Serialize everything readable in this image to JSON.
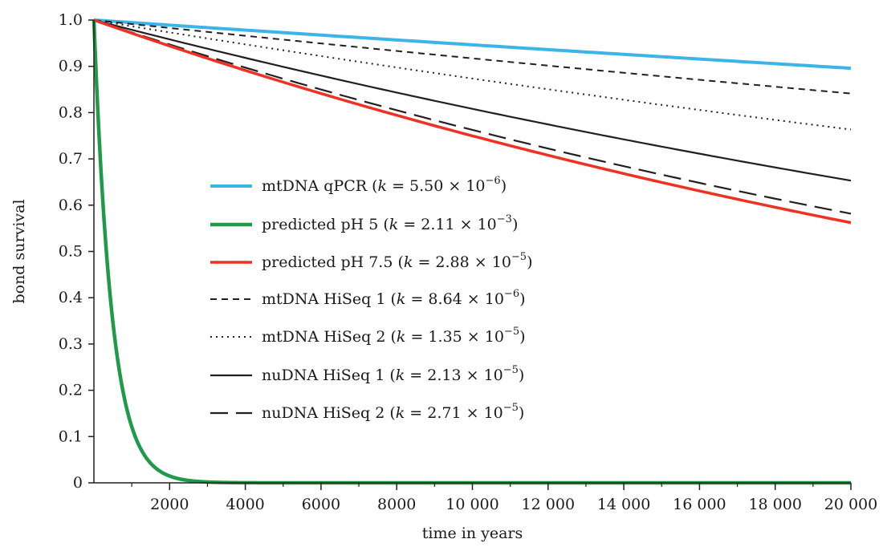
{
  "chart_data": {
    "type": "line",
    "xlabel": "time in years",
    "ylabel": "bond survival",
    "xlim": [
      0,
      20000
    ],
    "ylim": [
      0,
      1.0
    ],
    "x_ticks": [
      2000,
      4000,
      6000,
      8000,
      10000,
      12000,
      14000,
      16000,
      18000,
      20000
    ],
    "x_tick_labels": [
      "2000",
      "4000",
      "6000",
      "8000",
      "10 000",
      "12 000",
      "14 000",
      "16 000",
      "18 000",
      "20 000"
    ],
    "y_ticks": [
      0,
      0.1,
      0.2,
      0.3,
      0.4,
      0.5,
      0.6,
      0.7,
      0.8,
      0.9,
      1.0
    ],
    "y_tick_labels": [
      "0",
      "0.1",
      "0.2",
      "0.3",
      "0.4",
      "0.5",
      "0.6",
      "0.7",
      "0.8",
      "0.9",
      "1.0"
    ],
    "grid": false,
    "legend_position": "center-left",
    "model": "exponential decay: survival = exp(-k * t)",
    "series": [
      {
        "name": "mtDNA qPCR",
        "k_mantissa": "5.50",
        "k_exponent": "−6",
        "k": 5.5e-06,
        "color": "#3cb4e6",
        "style": "solid",
        "width": 4,
        "values_at_ticks": [
          0.989,
          0.978,
          0.968,
          0.957,
          0.947,
          0.936,
          0.926,
          0.916,
          0.906,
          0.896
        ]
      },
      {
        "name": "predicted pH 5",
        "k_mantissa": "2.11",
        "k_exponent": "−3",
        "k": 0.00211,
        "color": "#1f9a48",
        "style": "solid",
        "width": 4.5,
        "values_at_ticks": [
          0.015,
          0.0002,
          0,
          0,
          0,
          0,
          0,
          0,
          0,
          0
        ]
      },
      {
        "name": "predicted pH 7.5",
        "k_mantissa": "2.88",
        "k_exponent": "−5",
        "k": 2.88e-05,
        "color": "#ee3124",
        "style": "solid",
        "width": 3.5,
        "values_at_ticks": [
          0.944,
          0.891,
          0.841,
          0.794,
          0.75,
          0.708,
          0.668,
          0.631,
          0.595,
          0.562
        ]
      },
      {
        "name": "mtDNA HiSeq 1",
        "k_mantissa": "8.64",
        "k_exponent": "−6",
        "k": 8.64e-06,
        "color": "#231f20",
        "style": "dashed",
        "width": 2,
        "values_at_ticks": [
          0.983,
          0.966,
          0.95,
          0.933,
          0.917,
          0.902,
          0.886,
          0.871,
          0.856,
          0.841
        ]
      },
      {
        "name": "mtDNA HiSeq 2",
        "k_mantissa": "1.35",
        "k_exponent": "−5",
        "k": 1.35e-05,
        "color": "#231f20",
        "style": "dotted",
        "width": 2,
        "values_at_ticks": [
          0.973,
          0.947,
          0.922,
          0.897,
          0.874,
          0.85,
          0.828,
          0.806,
          0.784,
          0.763
        ]
      },
      {
        "name": "nuDNA HiSeq 1",
        "k_mantissa": "2.13",
        "k_exponent": "−5",
        "k": 2.13e-05,
        "color": "#231f20",
        "style": "solid",
        "width": 2.2,
        "values_at_ticks": [
          0.958,
          0.918,
          0.88,
          0.843,
          0.808,
          0.774,
          0.742,
          0.711,
          0.681,
          0.653
        ]
      },
      {
        "name": "nuDNA HiSeq 2",
        "k_mantissa": "2.71",
        "k_exponent": "−5",
        "k": 2.71e-05,
        "color": "#231f20",
        "style": "longdash",
        "width": 2.2,
        "values_at_ticks": [
          0.947,
          0.897,
          0.85,
          0.805,
          0.763,
          0.722,
          0.684,
          0.648,
          0.614,
          0.582
        ]
      }
    ]
  }
}
